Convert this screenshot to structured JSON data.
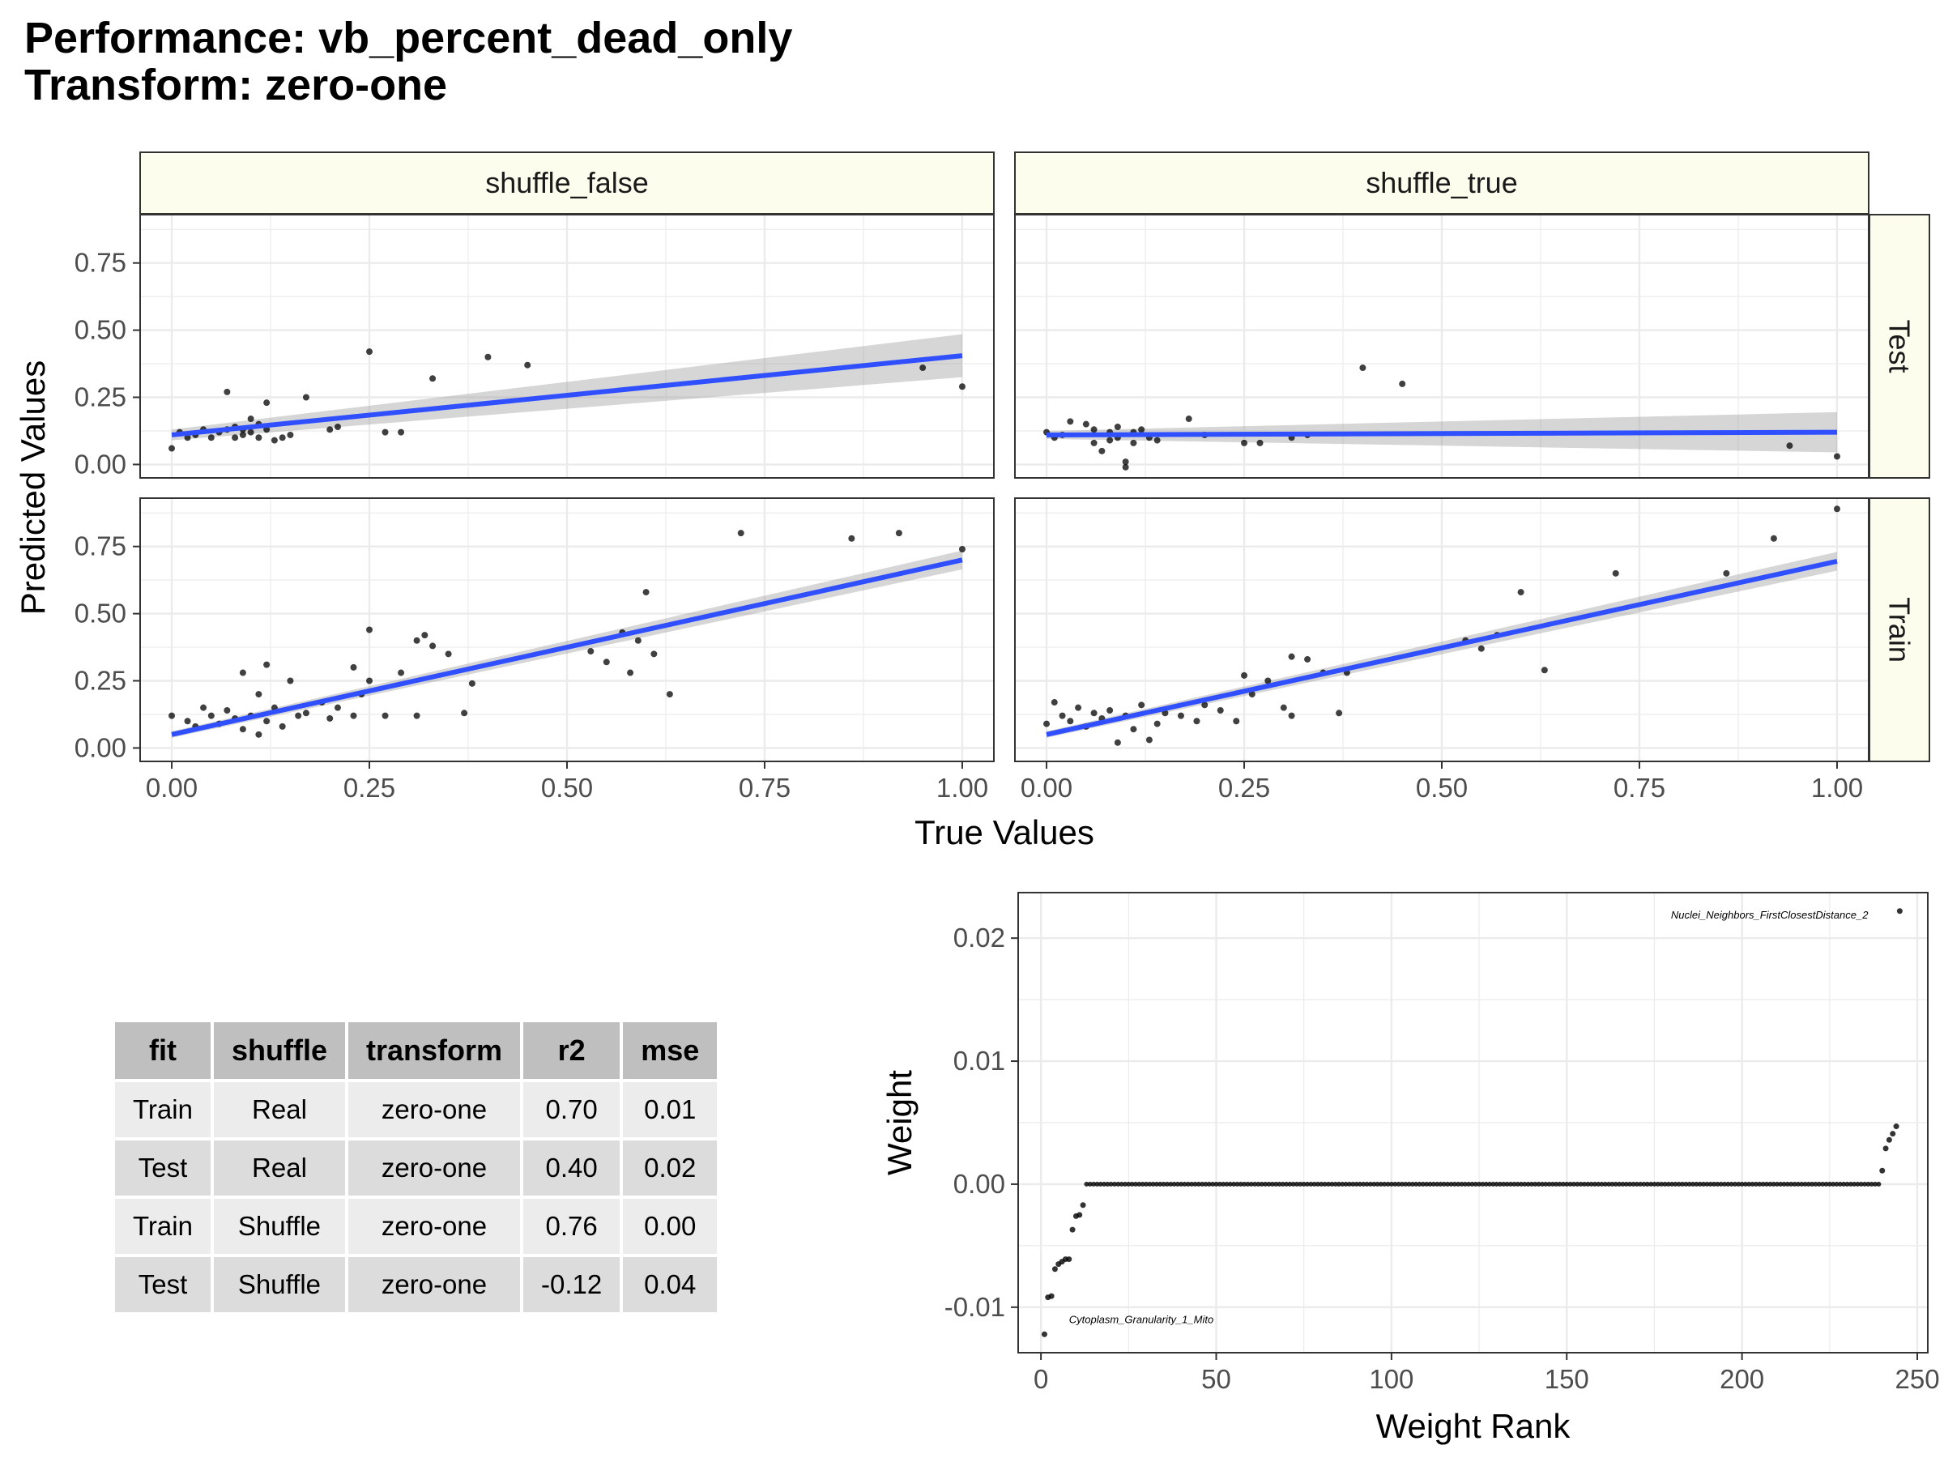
{
  "title_line1": "Performance: vb_percent_dead_only",
  "title_line2": "Transform: zero-one",
  "colors": {
    "fit_line": "#3050ff",
    "points": "#000000",
    "ribbon": "#999999",
    "strip_fill": "#fdfdee",
    "grid": "#ebebeb"
  },
  "chart_data": [
    {
      "type": "scatter",
      "facet_columns": [
        "shuffle_false",
        "shuffle_true"
      ],
      "facet_rows": [
        "Test",
        "Train"
      ],
      "xlabel": "True Values",
      "ylabel": "Predicted Values",
      "xlim": [
        -0.04,
        1.04
      ],
      "ylim": [
        -0.05,
        0.93
      ],
      "x_ticks": [
        "0.00",
        "0.25",
        "0.50",
        "0.75",
        "1.00"
      ],
      "y_ticks": [
        "0.00",
        "0.25",
        "0.50",
        "0.75"
      ],
      "x_tick_values": [
        0,
        0.25,
        0.5,
        0.75,
        1.0
      ],
      "y_tick_values": [
        0,
        0.25,
        0.5,
        0.75
      ],
      "grid": true,
      "panels": [
        {
          "col": "shuffle_false",
          "row": "Test",
          "fit": [
            [
              0,
              0.11
            ],
            [
              1,
              0.405
            ]
          ],
          "ribbon_halfwidth_at_ends": [
            0.02,
            0.08
          ],
          "points": [
            [
              0.0,
              0.06
            ],
            [
              0.01,
              0.12
            ],
            [
              0.02,
              0.1
            ],
            [
              0.03,
              0.11
            ],
            [
              0.04,
              0.13
            ],
            [
              0.05,
              0.1
            ],
            [
              0.06,
              0.12
            ],
            [
              0.07,
              0.27
            ],
            [
              0.07,
              0.13
            ],
            [
              0.08,
              0.14
            ],
            [
              0.08,
              0.1
            ],
            [
              0.09,
              0.11
            ],
            [
              0.09,
              0.13
            ],
            [
              0.1,
              0.17
            ],
            [
              0.1,
              0.12
            ],
            [
              0.11,
              0.15
            ],
            [
              0.11,
              0.1
            ],
            [
              0.12,
              0.23
            ],
            [
              0.12,
              0.13
            ],
            [
              0.13,
              0.09
            ],
            [
              0.14,
              0.1
            ],
            [
              0.15,
              0.11
            ],
            [
              0.17,
              0.25
            ],
            [
              0.2,
              0.13
            ],
            [
              0.21,
              0.14
            ],
            [
              0.25,
              0.42
            ],
            [
              0.27,
              0.12
            ],
            [
              0.29,
              0.12
            ],
            [
              0.33,
              0.32
            ],
            [
              0.4,
              0.4
            ],
            [
              0.45,
              0.37
            ],
            [
              0.95,
              0.36
            ],
            [
              1.0,
              0.29
            ]
          ]
        },
        {
          "col": "shuffle_true",
          "row": "Test",
          "fit": [
            [
              0,
              0.11
            ],
            [
              1,
              0.12
            ]
          ],
          "ribbon_halfwidth_at_ends": [
            0.015,
            0.075
          ],
          "points": [
            [
              0.0,
              0.12
            ],
            [
              0.01,
              0.1
            ],
            [
              0.02,
              0.11
            ],
            [
              0.03,
              0.16
            ],
            [
              0.05,
              0.15
            ],
            [
              0.06,
              0.13
            ],
            [
              0.06,
              0.08
            ],
            [
              0.07,
              0.05
            ],
            [
              0.08,
              0.12
            ],
            [
              0.08,
              0.09
            ],
            [
              0.09,
              0.1
            ],
            [
              0.09,
              0.14
            ],
            [
              0.1,
              -0.01
            ],
            [
              0.1,
              0.01
            ],
            [
              0.11,
              0.12
            ],
            [
              0.11,
              0.08
            ],
            [
              0.12,
              0.13
            ],
            [
              0.13,
              0.1
            ],
            [
              0.14,
              0.09
            ],
            [
              0.18,
              0.17
            ],
            [
              0.2,
              0.11
            ],
            [
              0.25,
              0.08
            ],
            [
              0.27,
              0.08
            ],
            [
              0.31,
              0.1
            ],
            [
              0.33,
              0.11
            ],
            [
              0.4,
              0.36
            ],
            [
              0.45,
              0.3
            ],
            [
              0.94,
              0.07
            ],
            [
              1.0,
              0.03
            ]
          ]
        },
        {
          "col": "shuffle_false",
          "row": "Train",
          "fit": [
            [
              0,
              0.05
            ],
            [
              1,
              0.7
            ]
          ],
          "ribbon_halfwidth_at_ends": [
            0.012,
            0.035
          ],
          "points": [
            [
              0.0,
              0.12
            ],
            [
              0.02,
              0.1
            ],
            [
              0.03,
              0.08
            ],
            [
              0.04,
              0.15
            ],
            [
              0.05,
              0.12
            ],
            [
              0.06,
              0.09
            ],
            [
              0.07,
              0.14
            ],
            [
              0.08,
              0.11
            ],
            [
              0.09,
              0.28
            ],
            [
              0.09,
              0.07
            ],
            [
              0.1,
              0.12
            ],
            [
              0.11,
              0.2
            ],
            [
              0.11,
              0.05
            ],
            [
              0.12,
              0.31
            ],
            [
              0.12,
              0.1
            ],
            [
              0.13,
              0.15
            ],
            [
              0.14,
              0.08
            ],
            [
              0.15,
              0.25
            ],
            [
              0.16,
              0.12
            ],
            [
              0.17,
              0.13
            ],
            [
              0.19,
              0.17
            ],
            [
              0.2,
              0.11
            ],
            [
              0.21,
              0.15
            ],
            [
              0.23,
              0.12
            ],
            [
              0.23,
              0.3
            ],
            [
              0.24,
              0.2
            ],
            [
              0.25,
              0.44
            ],
            [
              0.25,
              0.25
            ],
            [
              0.27,
              0.12
            ],
            [
              0.29,
              0.28
            ],
            [
              0.31,
              0.4
            ],
            [
              0.32,
              0.42
            ],
            [
              0.31,
              0.12
            ],
            [
              0.33,
              0.38
            ],
            [
              0.35,
              0.35
            ],
            [
              0.37,
              0.13
            ],
            [
              0.38,
              0.24
            ],
            [
              0.53,
              0.36
            ],
            [
              0.55,
              0.32
            ],
            [
              0.57,
              0.43
            ],
            [
              0.58,
              0.28
            ],
            [
              0.59,
              0.4
            ],
            [
              0.6,
              0.58
            ],
            [
              0.61,
              0.35
            ],
            [
              0.63,
              0.2
            ],
            [
              0.72,
              0.8
            ],
            [
              0.86,
              0.78
            ],
            [
              0.92,
              0.8
            ],
            [
              1.0,
              0.74
            ]
          ]
        },
        {
          "col": "shuffle_true",
          "row": "Train",
          "fit": [
            [
              0,
              0.05
            ],
            [
              1,
              0.695
            ]
          ],
          "ribbon_halfwidth_at_ends": [
            0.012,
            0.035
          ],
          "points": [
            [
              0.0,
              0.09
            ],
            [
              0.01,
              0.17
            ],
            [
              0.02,
              0.12
            ],
            [
              0.03,
              0.1
            ],
            [
              0.04,
              0.15
            ],
            [
              0.05,
              0.08
            ],
            [
              0.06,
              0.13
            ],
            [
              0.07,
              0.11
            ],
            [
              0.08,
              0.14
            ],
            [
              0.09,
              0.02
            ],
            [
              0.1,
              0.12
            ],
            [
              0.11,
              0.07
            ],
            [
              0.12,
              0.16
            ],
            [
              0.13,
              0.03
            ],
            [
              0.14,
              0.09
            ],
            [
              0.15,
              0.13
            ],
            [
              0.17,
              0.12
            ],
            [
              0.19,
              0.1
            ],
            [
              0.2,
              0.16
            ],
            [
              0.22,
              0.14
            ],
            [
              0.24,
              0.1
            ],
            [
              0.25,
              0.27
            ],
            [
              0.26,
              0.2
            ],
            [
              0.28,
              0.25
            ],
            [
              0.3,
              0.15
            ],
            [
              0.31,
              0.34
            ],
            [
              0.31,
              0.12
            ],
            [
              0.33,
              0.33
            ],
            [
              0.35,
              0.28
            ],
            [
              0.37,
              0.13
            ],
            [
              0.38,
              0.28
            ],
            [
              0.53,
              0.4
            ],
            [
              0.55,
              0.37
            ],
            [
              0.57,
              0.42
            ],
            [
              0.6,
              0.58
            ],
            [
              0.63,
              0.29
            ],
            [
              0.72,
              0.65
            ],
            [
              0.86,
              0.65
            ],
            [
              0.92,
              0.78
            ],
            [
              1.0,
              0.89
            ]
          ]
        }
      ]
    },
    {
      "type": "scatter",
      "xlabel": "Weight Rank",
      "ylabel": "Weight",
      "xlim": [
        -6.5,
        253
      ],
      "ylim": [
        -0.0137,
        0.0237
      ],
      "x_ticks": [
        "0",
        "50",
        "100",
        "150",
        "200",
        "250"
      ],
      "y_ticks": [
        "-0.01",
        "0.00",
        "0.01",
        "0.02"
      ],
      "x_tick_values": [
        0,
        50,
        100,
        150,
        200,
        250
      ],
      "y_tick_values": [
        -0.01,
        0,
        0.01,
        0.02
      ],
      "grid": true,
      "zero_run": [
        13,
        239
      ],
      "points": [
        [
          1,
          -0.0122
        ],
        [
          2,
          -0.0092
        ],
        [
          3,
          -0.0091
        ],
        [
          4,
          -0.0069
        ],
        [
          5,
          -0.0065
        ],
        [
          6,
          -0.0063
        ],
        [
          7,
          -0.0061
        ],
        [
          8,
          -0.0061
        ],
        [
          9,
          -0.0037
        ],
        [
          10,
          -0.0026
        ],
        [
          11,
          -0.0025
        ],
        [
          12,
          -0.0017
        ],
        [
          240,
          0.0011
        ],
        [
          241,
          0.0029
        ],
        [
          242,
          0.0036
        ],
        [
          243,
          0.0041
        ],
        [
          244,
          0.0047
        ],
        [
          245,
          0.0222
        ]
      ],
      "annotations": [
        {
          "text": "Nuclei_Neighbors_FirstClosestDistance_2",
          "x": 236,
          "y": 0.0216,
          "anchor": "end"
        },
        {
          "text": "Cytoplasm_Granularity_1_Mito",
          "x": 8,
          "y": -0.0113,
          "anchor": "start"
        }
      ]
    }
  ],
  "table": {
    "headers": [
      "fit",
      "shuffle",
      "transform",
      "r2",
      "mse"
    ],
    "rows": [
      [
        "Train",
        "Real",
        "zero-one",
        "0.70",
        "0.01"
      ],
      [
        "Test",
        "Real",
        "zero-one",
        "0.40",
        "0.02"
      ],
      [
        "Train",
        "Shuffle",
        "zero-one",
        "0.76",
        "0.00"
      ],
      [
        "Test",
        "Shuffle",
        "zero-one",
        "-0.12",
        "0.04"
      ]
    ]
  }
}
